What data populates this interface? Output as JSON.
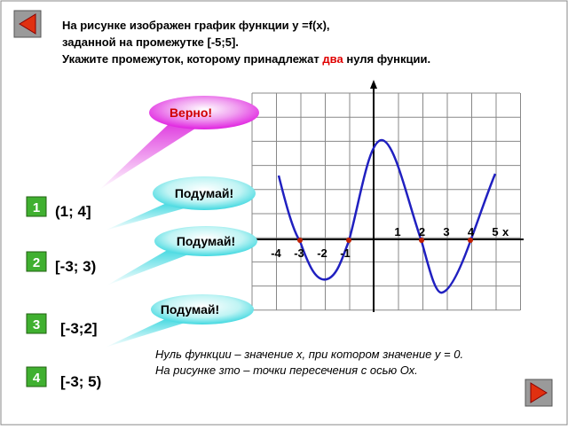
{
  "question": {
    "line1": "На рисунке изображен график функции y =f(x),",
    "line2": "заданной на промежутке [-5;5].",
    "line3_start": "Укажите промежуток, которому принадлежат",
    "line3_highlight": "два",
    "line3_end": "нуля функции."
  },
  "feedback": [
    "Верно!",
    "Подумай!",
    "Подумай!",
    "Подумай!"
  ],
  "options": [
    {
      "number": "1",
      "text": "(1; 4]"
    },
    {
      "number": "2",
      "text": "[-3; 3)"
    },
    {
      "number": "3",
      "text": "[-3;2]"
    },
    {
      "number": "4",
      "text": "[-3; 5)"
    }
  ],
  "axis": {
    "x_labels_above": [
      "1",
      "2",
      "3",
      "4",
      "5"
    ],
    "x_name": "x",
    "x_labels_below": [
      "-4",
      "-3",
      "-2",
      "-1"
    ]
  },
  "note": {
    "line1": "Нуль функции – значение х, при котором значение у = 0.",
    "line2": "На рисунке зто – точки пересечения с осью Ох."
  }
}
